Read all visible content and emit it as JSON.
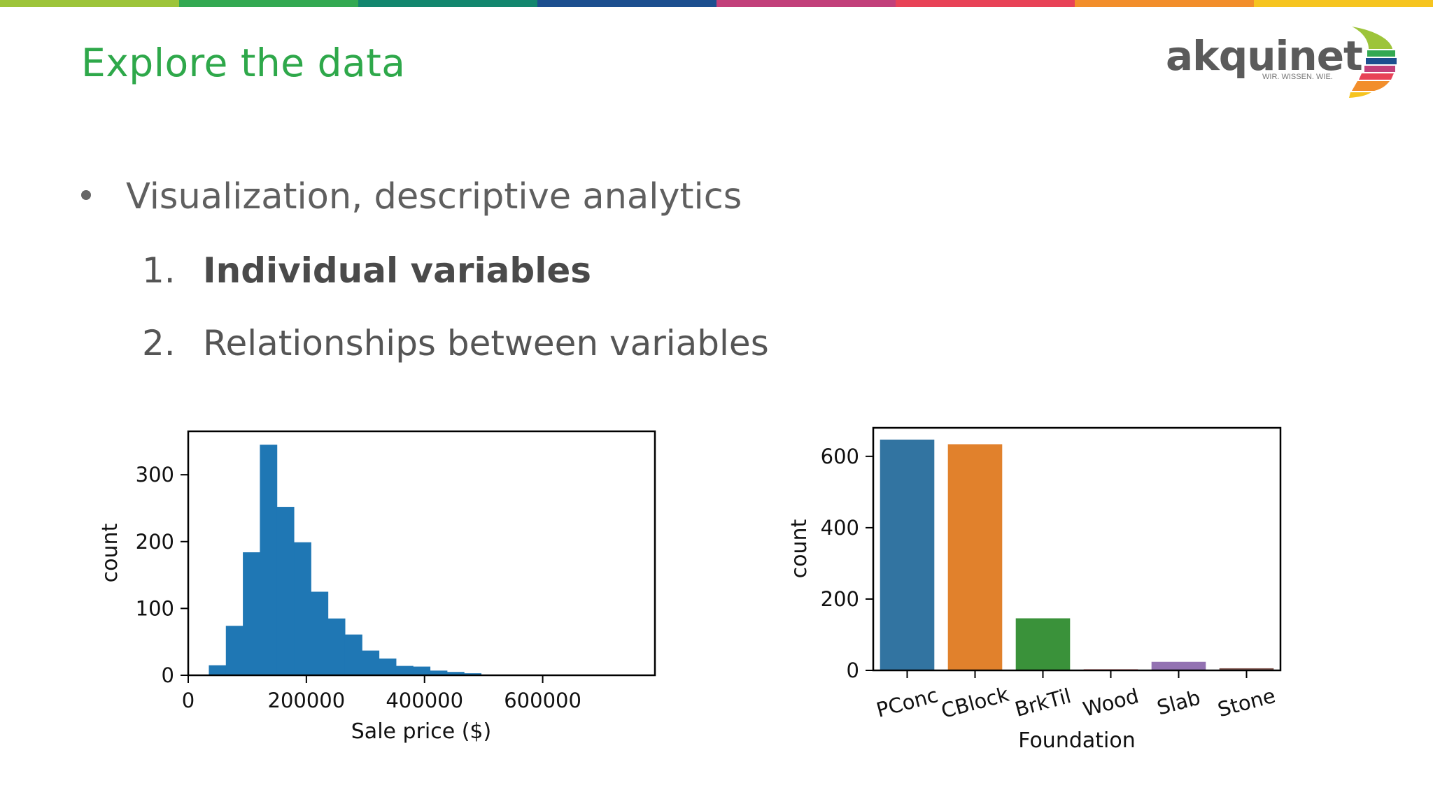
{
  "slide": {
    "title": "Explore the data",
    "top_bar_colors": [
      "#9dc43a",
      "#33a952",
      "#13866e",
      "#1c4f8f",
      "#c2407a",
      "#e84257",
      "#f28e2b",
      "#f6c41f"
    ]
  },
  "logo": {
    "name": "akquinet",
    "tagline": "WIR. WISSEN. WIE."
  },
  "bullets": {
    "main": "Visualization, descriptive analytics",
    "items": [
      {
        "num": "1.",
        "text": "Individual variables"
      },
      {
        "num": "2.",
        "text": "Relationships between variables"
      }
    ]
  },
  "chart_data": [
    {
      "type": "bar",
      "subtype": "histogram",
      "xlabel": "Sale price ($)",
      "ylabel": "count",
      "xlim": [
        0,
        790000
      ],
      "ylim": [
        0,
        365
      ],
      "xticks": [
        0,
        200000,
        400000,
        600000
      ],
      "yticks": [
        0,
        100,
        200,
        300
      ],
      "bin_width": 28800,
      "bins_start": 34900,
      "counts": [
        15,
        74,
        184,
        345,
        252,
        199,
        125,
        85,
        61,
        37,
        25,
        14,
        13,
        7,
        5,
        3,
        1,
        0,
        0,
        1,
        1,
        1,
        0,
        0,
        0,
        1
      ],
      "color": "#1f77b4"
    },
    {
      "type": "bar",
      "xlabel": "Foundation",
      "ylabel": "count",
      "categories": [
        "PConc",
        "CBlock",
        "BrkTil",
        "Wood",
        "Slab",
        "Stone"
      ],
      "values": [
        647,
        634,
        146,
        3,
        24,
        6
      ],
      "colors": [
        "#3274a1",
        "#e1812c",
        "#3a923a",
        "#c03d3e",
        "#9372b2",
        "#845b53"
      ],
      "ylim": [
        0,
        680
      ],
      "yticks": [
        0,
        200,
        400,
        600
      ]
    }
  ]
}
